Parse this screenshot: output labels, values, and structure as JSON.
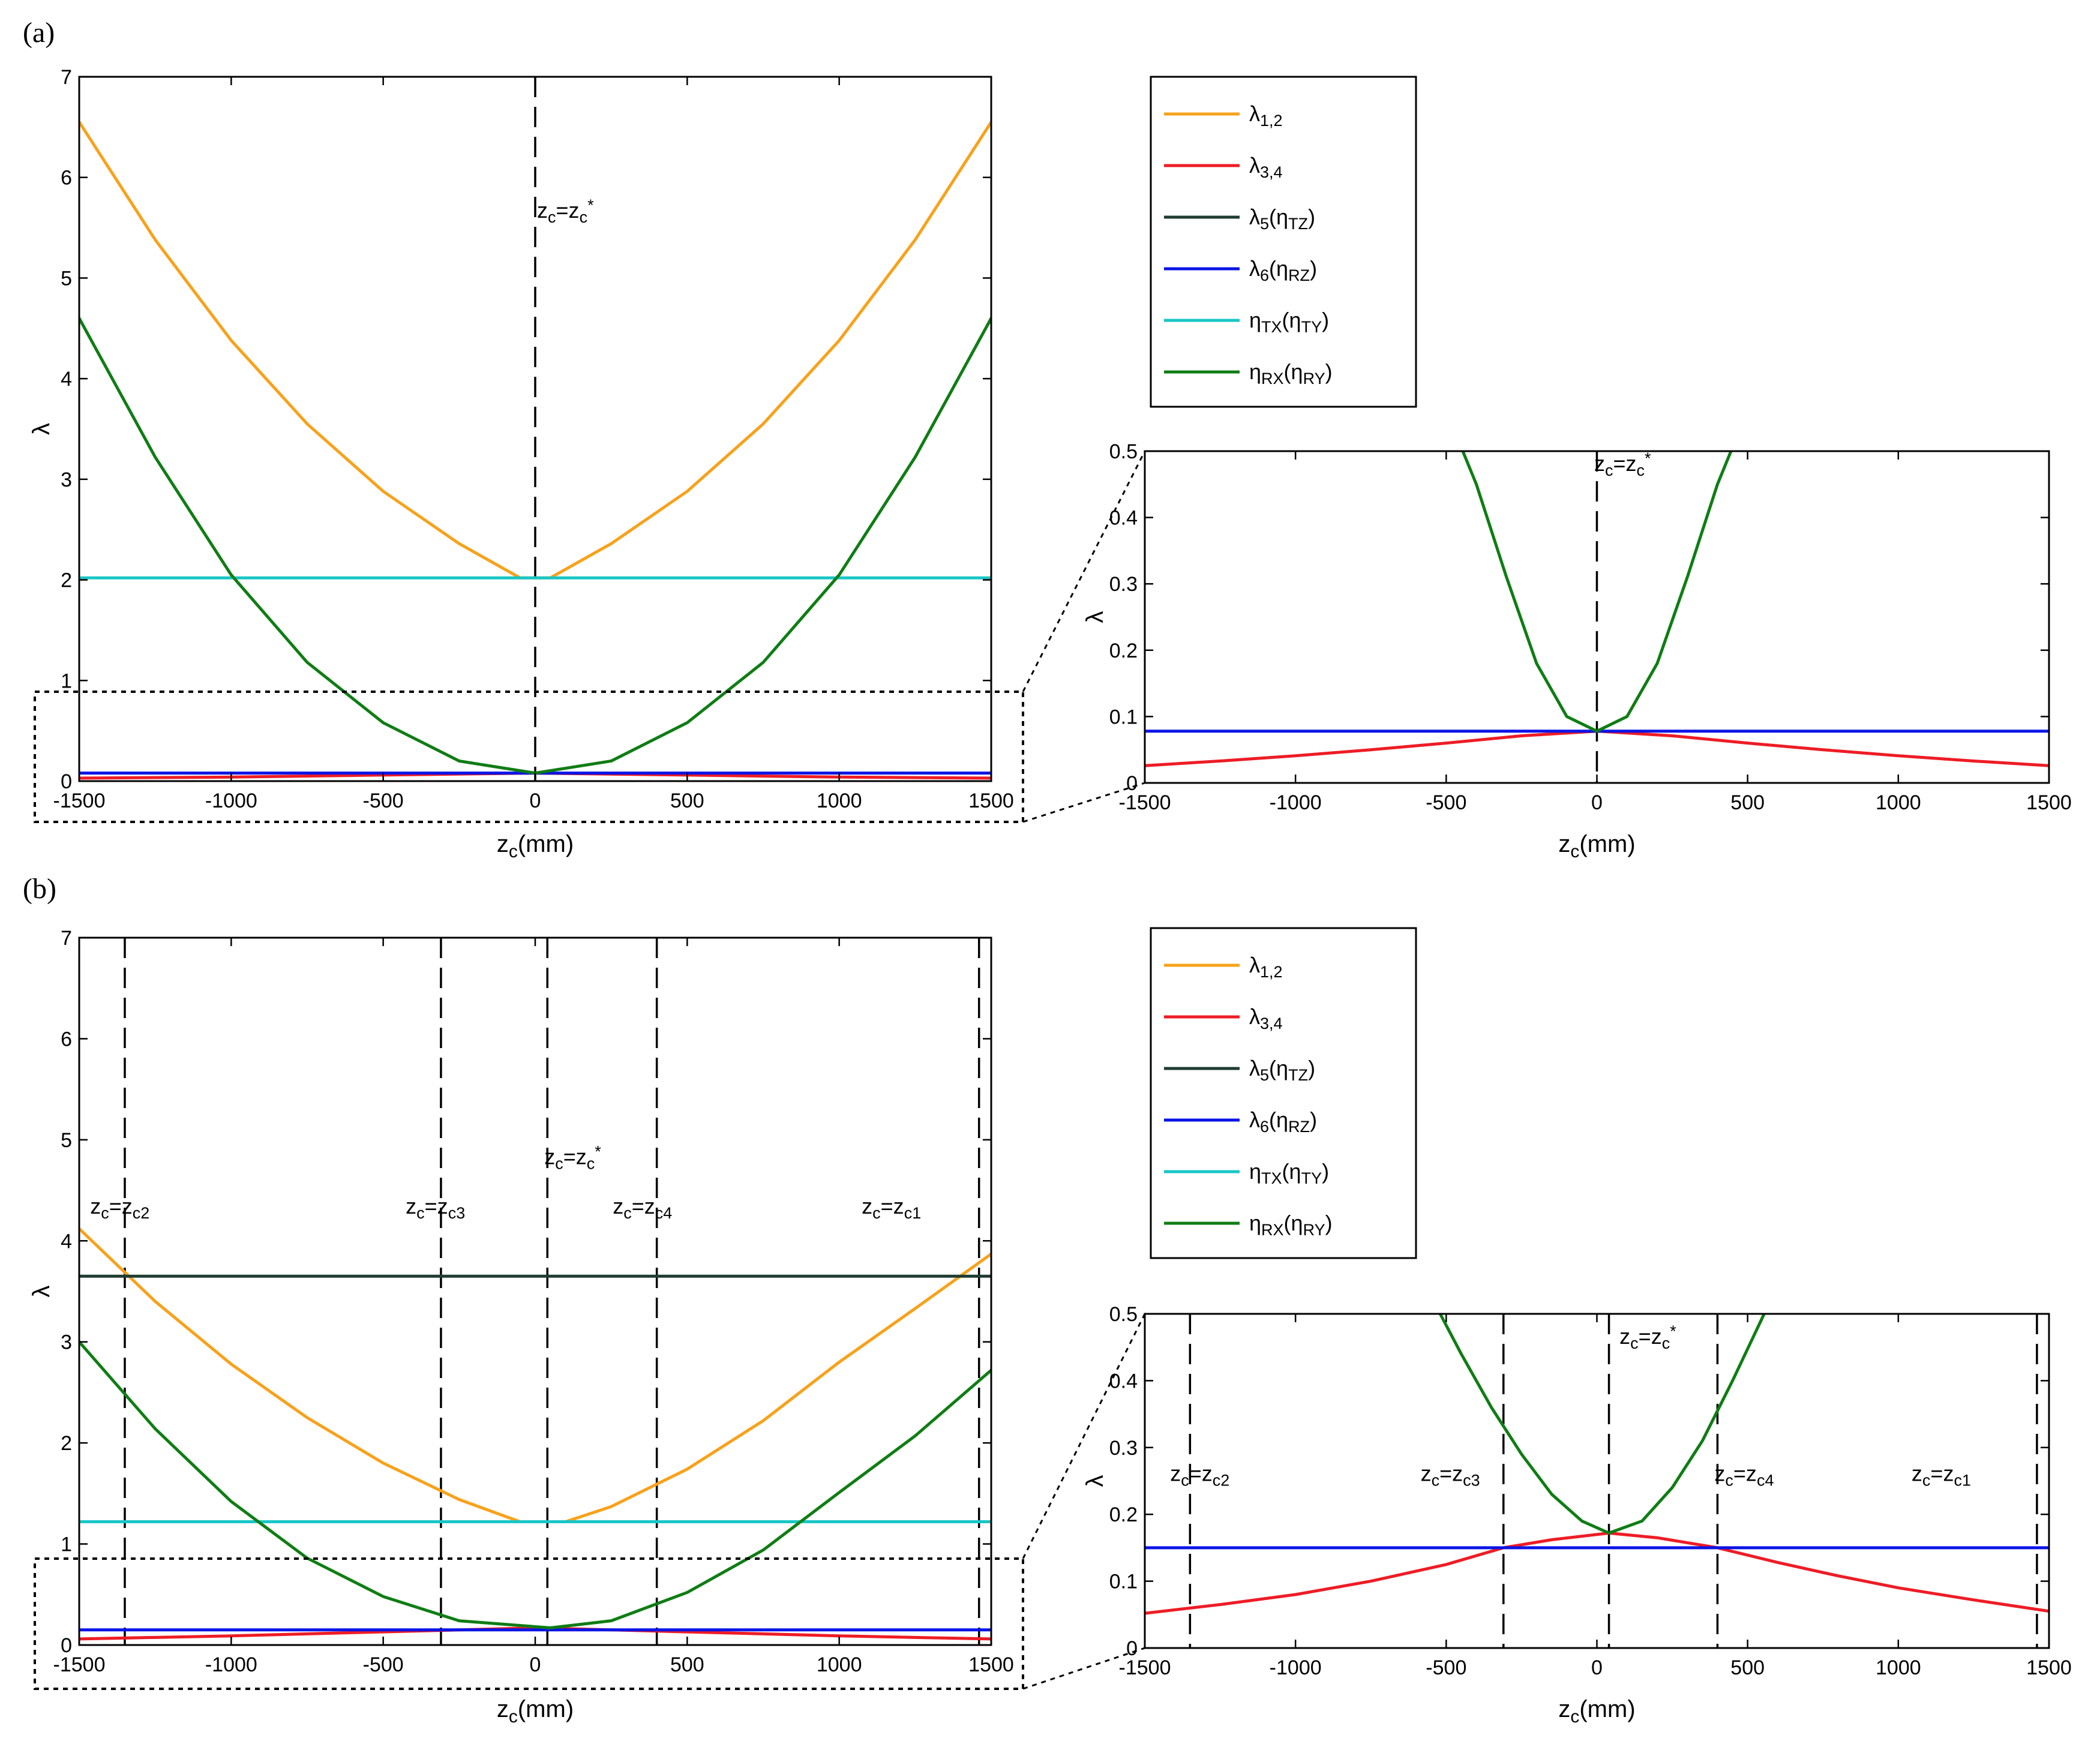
{
  "panel_labels": [
    "(a)",
    "(b)"
  ],
  "colors": {
    "lambda12": "#f7a21b",
    "lambda34": "#ee1c25",
    "lambda5": "#1f3d32",
    "lambda6": "#0a14e6",
    "etaTX": "#19c6c6",
    "etaRX": "#0f7d14"
  },
  "legend": [
    {
      "key": "lambda12",
      "label": "λ1,2"
    },
    {
      "key": "lambda34",
      "label": "λ3,4"
    },
    {
      "key": "lambda5",
      "label": "λ5(ηTZ)"
    },
    {
      "key": "lambda6",
      "label": "λ6(ηRZ)"
    },
    {
      "key": "etaTX",
      "label": "ηTX(ηTY)"
    },
    {
      "key": "etaRX",
      "label": "ηRX(ηRY)"
    }
  ],
  "chart_data": [
    {
      "id": "a-main",
      "type": "line",
      "xlabel": "zc(mm)",
      "ylabel": "λ",
      "xlim": [
        -1500,
        1500
      ],
      "ylim": [
        0,
        7
      ],
      "xticks": [
        -1500,
        -1000,
        -500,
        0,
        500,
        1000,
        1500
      ],
      "yticks": [
        0,
        1,
        2,
        3,
        4,
        5,
        6,
        7
      ],
      "vlines": [
        {
          "x": 0,
          "label": "zc=zc*"
        }
      ],
      "series": [
        {
          "name": "λ1,2",
          "key": "lambda12",
          "x": [
            -1500,
            -1250,
            -1000,
            -750,
            -500,
            -250,
            -50,
            50,
            250,
            500,
            750,
            1000,
            1250,
            1500
          ],
          "y": [
            6.55,
            5.38,
            4.38,
            3.55,
            2.88,
            2.36,
            2.02,
            2.02,
            2.36,
            2.88,
            3.55,
            4.38,
            5.38,
            6.55
          ]
        },
        {
          "name": "λ3,4",
          "key": "lambda34",
          "x": [
            -1500,
            -1000,
            -500,
            0,
            500,
            1000,
            1500
          ],
          "y": [
            0.03,
            0.04,
            0.06,
            0.08,
            0.06,
            0.04,
            0.03
          ]
        },
        {
          "name": "λ6(ηRZ)",
          "key": "lambda6",
          "x": [
            -1500,
            1500
          ],
          "y": [
            0.08,
            0.08
          ]
        },
        {
          "name": "ηTX(ηTY)",
          "key": "etaTX",
          "x": [
            -1500,
            1500
          ],
          "y": [
            2.02,
            2.02
          ]
        },
        {
          "name": "ηRX(ηRY)",
          "key": "etaRX",
          "x": [
            -1500,
            -1250,
            -1000,
            -750,
            -500,
            -250,
            0,
            250,
            500,
            750,
            1000,
            1250,
            1500
          ],
          "y": [
            4.6,
            3.22,
            2.05,
            1.18,
            0.58,
            0.2,
            0.08,
            0.2,
            0.58,
            1.18,
            2.05,
            3.22,
            4.6
          ]
        }
      ]
    },
    {
      "id": "a-inset",
      "type": "line",
      "xlabel": "zc(mm)",
      "ylabel": "λ",
      "xlim": [
        -1500,
        1500
      ],
      "ylim": [
        0,
        0.5
      ],
      "xticks": [
        -1500,
        -1000,
        -500,
        0,
        500,
        1000,
        1500
      ],
      "yticks": [
        0,
        0.1,
        0.2,
        0.3,
        0.4,
        0.5
      ],
      "vlines": [
        {
          "x": 0,
          "label": "zc=zc*"
        }
      ],
      "series": [
        {
          "name": "λ3,4",
          "key": "lambda34",
          "x": [
            -1500,
            -1250,
            -1000,
            -750,
            -500,
            -250,
            0,
            250,
            500,
            750,
            1000,
            1250,
            1500
          ],
          "y": [
            0.026,
            0.033,
            0.041,
            0.05,
            0.06,
            0.071,
            0.078,
            0.071,
            0.06,
            0.05,
            0.041,
            0.033,
            0.026
          ]
        },
        {
          "name": "λ6(ηRZ)",
          "key": "lambda6",
          "x": [
            -1500,
            1500
          ],
          "y": [
            0.078,
            0.078
          ]
        },
        {
          "name": "ηRX(ηRY)",
          "key": "etaRX",
          "x": [
            -445,
            -400,
            -300,
            -200,
            -100,
            0,
            100,
            200,
            300,
            400,
            445
          ],
          "y": [
            0.5,
            0.45,
            0.31,
            0.18,
            0.1,
            0.078,
            0.1,
            0.18,
            0.31,
            0.45,
            0.5
          ]
        }
      ]
    },
    {
      "id": "b-main",
      "type": "line",
      "xlabel": "zc(mm)",
      "ylabel": "λ",
      "xlim": [
        -1500,
        1500
      ],
      "ylim": [
        0,
        7
      ],
      "xticks": [
        -1500,
        -1000,
        -500,
        0,
        500,
        1000,
        1500
      ],
      "yticks": [
        0,
        1,
        2,
        3,
        4,
        5,
        6,
        7
      ],
      "vlines": [
        {
          "x": -1350,
          "label": "zc=zc2"
        },
        {
          "x": -310,
          "label": "zc=zc3"
        },
        {
          "x": 40,
          "label": "zc=zc*"
        },
        {
          "x": 400,
          "label": "zc=zc4"
        },
        {
          "x": 1460,
          "label": "zc=zc1"
        }
      ],
      "series": [
        {
          "name": "λ1,2",
          "key": "lambda12",
          "x": [
            -1500,
            -1250,
            -1000,
            -750,
            -500,
            -250,
            -50,
            100,
            250,
            500,
            750,
            1000,
            1250,
            1500
          ],
          "y": [
            4.12,
            3.4,
            2.78,
            2.25,
            1.8,
            1.44,
            1.22,
            1.22,
            1.37,
            1.74,
            2.22,
            2.8,
            3.33,
            3.87
          ]
        },
        {
          "name": "λ3,4",
          "key": "lambda34",
          "x": [
            -1500,
            -1000,
            -500,
            0,
            500,
            1000,
            1500
          ],
          "y": [
            0.06,
            0.09,
            0.13,
            0.17,
            0.13,
            0.09,
            0.06
          ]
        },
        {
          "name": "λ5(ηTZ)",
          "key": "lambda5",
          "x": [
            -1500,
            1500
          ],
          "y": [
            3.65,
            3.65
          ]
        },
        {
          "name": "λ6(ηRZ)",
          "key": "lambda6",
          "x": [
            -1500,
            1500
          ],
          "y": [
            0.15,
            0.15
          ]
        },
        {
          "name": "ηTX(ηTY)",
          "key": "etaTX",
          "x": [
            -1500,
            1500
          ],
          "y": [
            1.22,
            1.22
          ]
        },
        {
          "name": "ηRX(ηRY)",
          "key": "etaRX",
          "x": [
            -1500,
            -1250,
            -1000,
            -750,
            -500,
            -250,
            50,
            250,
            500,
            750,
            1000,
            1250,
            1500
          ],
          "y": [
            3.0,
            2.14,
            1.42,
            0.86,
            0.48,
            0.24,
            0.17,
            0.24,
            0.52,
            0.94,
            1.51,
            2.07,
            2.72
          ]
        }
      ]
    },
    {
      "id": "b-inset",
      "type": "line",
      "xlabel": "zc(mm)",
      "ylabel": "λ",
      "xlim": [
        -1500,
        1500
      ],
      "ylim": [
        0,
        0.5
      ],
      "xticks": [
        -1500,
        -1000,
        -500,
        0,
        500,
        1000,
        1500
      ],
      "yticks": [
        0,
        0.1,
        0.2,
        0.3,
        0.4,
        0.5
      ],
      "vlines": [
        {
          "x": -1350,
          "label": "zc=zc2"
        },
        {
          "x": -310,
          "label": "zc=zc3"
        },
        {
          "x": 40,
          "label": "zc=zc*"
        },
        {
          "x": 400,
          "label": "zc=zc4"
        },
        {
          "x": 1460,
          "label": "zc=zc1"
        }
      ],
      "series": [
        {
          "name": "λ3,4",
          "key": "lambda34",
          "x": [
            -1500,
            -1250,
            -1000,
            -750,
            -500,
            -310,
            -150,
            40,
            200,
            400,
            600,
            800,
            1000,
            1250,
            1500
          ],
          "y": [
            0.052,
            0.065,
            0.08,
            0.1,
            0.125,
            0.15,
            0.162,
            0.172,
            0.165,
            0.15,
            0.128,
            0.108,
            0.09,
            0.072,
            0.055
          ]
        },
        {
          "name": "λ6(ηRZ)",
          "key": "lambda6",
          "x": [
            -1500,
            1500
          ],
          "y": [
            0.15,
            0.15
          ]
        },
        {
          "name": "ηRX(ηRY)",
          "key": "etaRX",
          "x": [
            -520,
            -450,
            -350,
            -250,
            -150,
            -50,
            40,
            150,
            250,
            350,
            450,
            555
          ],
          "y": [
            0.5,
            0.44,
            0.36,
            0.29,
            0.23,
            0.19,
            0.172,
            0.19,
            0.24,
            0.31,
            0.4,
            0.5
          ]
        }
      ]
    }
  ]
}
